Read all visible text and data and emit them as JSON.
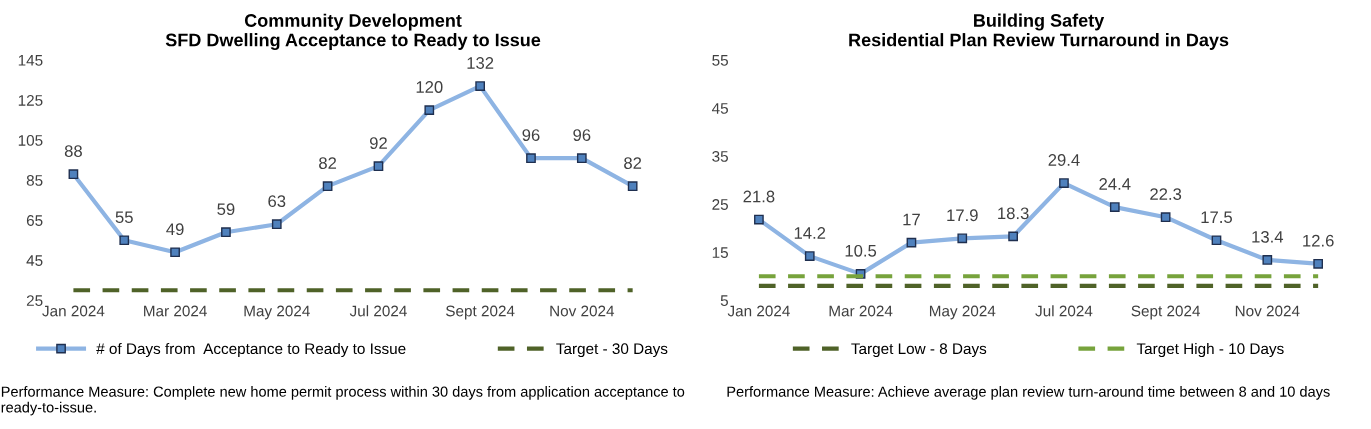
{
  "chart_data": [
    {
      "type": "line",
      "title": "Community Development\nSFD Dwelling Acceptance to Ready to Issue",
      "categories": [
        "Jan 2024",
        null,
        "Mar 2024",
        null,
        "May 2024",
        null,
        "Jul 2024",
        null,
        "Sept 2024",
        null,
        "Nov 2024",
        null
      ],
      "series": [
        {
          "name": "# of Days from  Acceptance to Ready to Issue",
          "color": "#8eb4e3",
          "marker": "square",
          "line_style": "solid",
          "values": [
            88,
            55,
            49,
            59,
            63,
            82,
            92,
            120,
            132,
            96,
            96,
            82
          ],
          "value_labels": [
            "88",
            "55",
            "49",
            "59",
            "63",
            "82",
            "92",
            "120",
            "132",
            "96",
            "96",
            "82"
          ]
        },
        {
          "name": "Target - 30 Days",
          "color": "#4f6228",
          "marker": "none",
          "line_style": "dashed",
          "values": [
            30,
            30,
            30,
            30,
            30,
            30,
            30,
            30,
            30,
            30,
            30,
            30
          ]
        }
      ],
      "ylim": [
        25,
        145
      ],
      "yticks": [
        25,
        45,
        65,
        85,
        105,
        125,
        145
      ],
      "grid": false,
      "legend": "bottom",
      "annotations": [
        "Performance Measure: Complete new home permit process within 30 days from application acceptance to ready-to-issue."
      ]
    },
    {
      "type": "line",
      "title": "Building Safety\nResidential Plan Review Turnaround in Days",
      "categories": [
        "Jan 2024",
        null,
        "Mar 2024",
        null,
        "May 2024",
        null,
        "Jul 2024",
        null,
        "Sept 2024",
        null,
        "Nov 2024",
        null
      ],
      "series": [
        {
          "color": "#8eb4e3",
          "marker": "square",
          "line_style": "solid",
          "values": [
            21.8,
            14.2,
            10.5,
            17,
            17.9,
            18.3,
            29.4,
            24.4,
            22.3,
            17.5,
            13.4,
            12.6
          ],
          "value_labels": [
            "21.8",
            "14.2",
            "10.5",
            "17",
            "17.9",
            "18.3",
            "29.4",
            "24.4",
            "22.3",
            "17.5",
            "13.4",
            "12.6"
          ]
        },
        {
          "name": "Target Low - 8 Days",
          "color": "#4f6228",
          "marker": "none",
          "line_style": "dashed",
          "values": [
            8,
            8,
            8,
            8,
            8,
            8,
            8,
            8,
            8,
            8,
            8,
            8
          ]
        },
        {
          "name": "Target High - 10 Days",
          "color": "#77a33c",
          "marker": "none",
          "line_style": "dashed",
          "values": [
            10,
            10,
            10,
            10,
            10,
            10,
            10,
            10,
            10,
            10,
            10,
            10
          ]
        }
      ],
      "ylim": [
        5,
        55
      ],
      "yticks": [
        5,
        15,
        25,
        35,
        45,
        55
      ],
      "grid": false,
      "legend": "bottom",
      "annotations": [
        "Performance Measure: Achieve average plan review turn-around time between 8 and 10 days"
      ]
    }
  ]
}
